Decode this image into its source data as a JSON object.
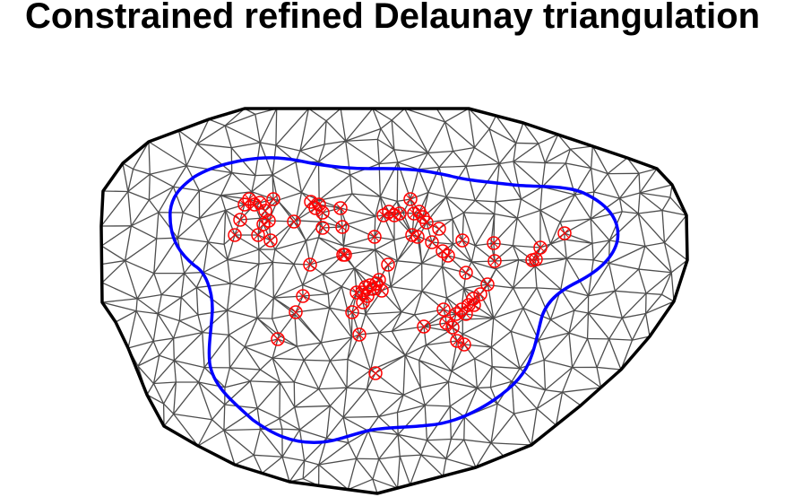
{
  "title": "Constrained refined Delaunay triangulation",
  "colors": {
    "background": "#ffffff",
    "title": "#000000",
    "outer_boundary": "#000000",
    "mesh_edges": "#4d4d4d",
    "inner_boundary": "#0000ff",
    "data_points": "#ff0000"
  },
  "legend": "none",
  "axes": "none"
}
